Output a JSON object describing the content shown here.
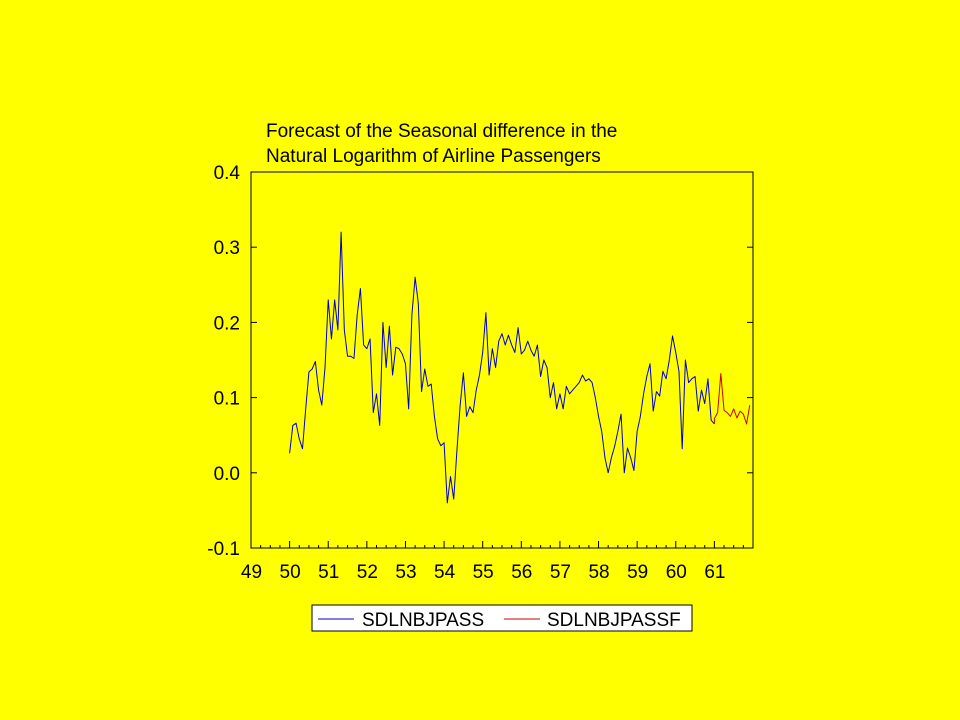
{
  "slide": {
    "background": "#FFFF00"
  },
  "chart_data": {
    "type": "line",
    "title_lines": [
      "Forecast of the Seasonal difference in the",
      "Natural Logarithm of Airline Passengers"
    ],
    "xlabel": "",
    "ylabel": "",
    "xlim": [
      49,
      62
    ],
    "ylim": [
      -0.1,
      0.4
    ],
    "x_ticks": [
      49,
      50,
      51,
      52,
      53,
      54,
      55,
      56,
      57,
      58,
      59,
      60,
      61
    ],
    "x_tick_labels": [
      "49",
      "50",
      "51",
      "52",
      "53",
      "54",
      "55",
      "56",
      "57",
      "58",
      "59",
      "60",
      "61"
    ],
    "y_ticks": [
      -0.1,
      0.0,
      0.1,
      0.2,
      0.3,
      0.4
    ],
    "y_tick_labels": [
      "-0.1",
      "0.0",
      "0.1",
      "0.2",
      "0.3",
      "0.4"
    ],
    "grid": false,
    "legend_position": "bottom-center",
    "series": [
      {
        "name": "SDLNBJPASS",
        "color": "#0000CC",
        "x_start": 50.0,
        "x_step": 0.08333,
        "values": [
          0.026,
          0.063,
          0.066,
          0.045,
          0.032,
          0.085,
          0.134,
          0.138,
          0.148,
          0.11,
          0.09,
          0.14,
          0.23,
          0.178,
          0.23,
          0.19,
          0.32,
          0.19,
          0.155,
          0.155,
          0.152,
          0.21,
          0.245,
          0.17,
          0.165,
          0.178,
          0.08,
          0.105,
          0.063,
          0.2,
          0.14,
          0.195,
          0.13,
          0.167,
          0.165,
          0.158,
          0.145,
          0.085,
          0.21,
          0.26,
          0.225,
          0.108,
          0.138,
          0.115,
          0.118,
          0.075,
          0.045,
          0.036,
          0.04,
          -0.04,
          -0.005,
          -0.035,
          0.03,
          0.09,
          0.133,
          0.075,
          0.088,
          0.08,
          0.11,
          0.13,
          0.16,
          0.213,
          0.13,
          0.165,
          0.14,
          0.175,
          0.185,
          0.17,
          0.183,
          0.17,
          0.16,
          0.193,
          0.158,
          0.163,
          0.175,
          0.163,
          0.155,
          0.17,
          0.128,
          0.15,
          0.14,
          0.1,
          0.12,
          0.085,
          0.105,
          0.085,
          0.115,
          0.105,
          0.11,
          0.115,
          0.12,
          0.13,
          0.122,
          0.125,
          0.12,
          0.1,
          0.075,
          0.055,
          0.02,
          0.0,
          0.02,
          0.035,
          0.055,
          0.078,
          0.0,
          0.033,
          0.02,
          0.003,
          0.055,
          0.075,
          0.105,
          0.128,
          0.145,
          0.082,
          0.108,
          0.102,
          0.135,
          0.125,
          0.15,
          0.182,
          0.16,
          0.135,
          0.032,
          0.15,
          0.12,
          0.125,
          0.128,
          0.082,
          0.11,
          0.092,
          0.125,
          0.07,
          0.065
        ]
      },
      {
        "name": "SDLNBJPASSF",
        "color": "#CC0000",
        "x_start": 61.0,
        "x_step": 0.08333,
        "values": [
          0.072,
          0.08,
          0.132,
          0.083,
          0.08,
          0.075,
          0.085,
          0.073,
          0.082,
          0.078,
          0.065,
          0.09
        ]
      }
    ]
  }
}
